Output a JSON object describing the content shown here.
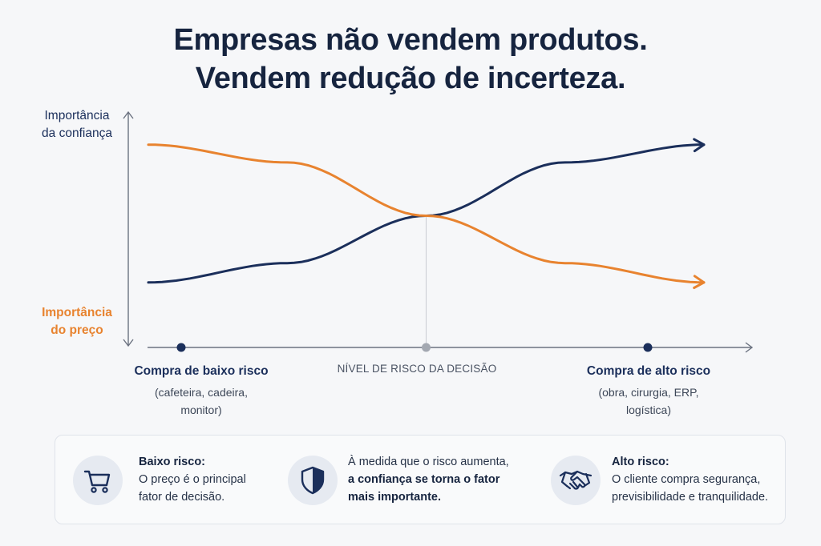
{
  "title": {
    "line1": "Empresas não vendem produtos.",
    "line2": "Vendem redução de incerteza."
  },
  "chart_data": {
    "type": "line",
    "y_labels": {
      "trust_line1": "Importância",
      "trust_line2": "da confiança",
      "price_line1": "Importância",
      "price_line2": "do preço"
    },
    "xlabel": "NÍVEL DE RISCO DA DECISÃO",
    "xlim": [
      0,
      1
    ],
    "ylim": [
      0,
      1
    ],
    "x": [
      0,
      0.25,
      0.5,
      0.75,
      1.0
    ],
    "series": [
      {
        "key": "trust",
        "values": [
          0.05,
          0.18,
          0.5,
          0.86,
          0.98
        ],
        "color": "#1b2f5b"
      },
      {
        "key": "price",
        "values": [
          0.98,
          0.86,
          0.5,
          0.18,
          0.05
        ],
        "color": "#e8832f"
      }
    ],
    "crossover_x": 0.5,
    "markers": [
      {
        "x": 0.08,
        "color": "#1b2f5b"
      },
      {
        "x": 0.5,
        "color": "#a3a8b1"
      },
      {
        "x": 0.92,
        "color": "#1b2f5b"
      }
    ],
    "categories": [
      {
        "title": "Compra de baixo risco",
        "line1": "(cafeteira, cadeira,",
        "line2": "monitor)"
      },
      {
        "title": "Compra de alto risco",
        "line1": "(obra, cirurgia, ERP,",
        "line2": "logística)"
      }
    ],
    "grid": false
  },
  "cards": [
    {
      "icon": "shopping-cart-icon",
      "bold": "Baixo risco:",
      "line1": "O preço é o principal",
      "line2": "fator de decisão."
    },
    {
      "icon": "shield-icon",
      "line1": "À medida que o risco aumenta,",
      "bold1": "a confiança se torna o fator",
      "bold2": "mais importante."
    },
    {
      "icon": "handshake-icon",
      "bold": "Alto risco:",
      "line1": "O cliente compra segurança,",
      "line2": "previsibilidade e tranquilidade."
    }
  ],
  "colors": {
    "navy": "#1b2f5b",
    "orange": "#e8832f",
    "axis": "#6b7280"
  }
}
